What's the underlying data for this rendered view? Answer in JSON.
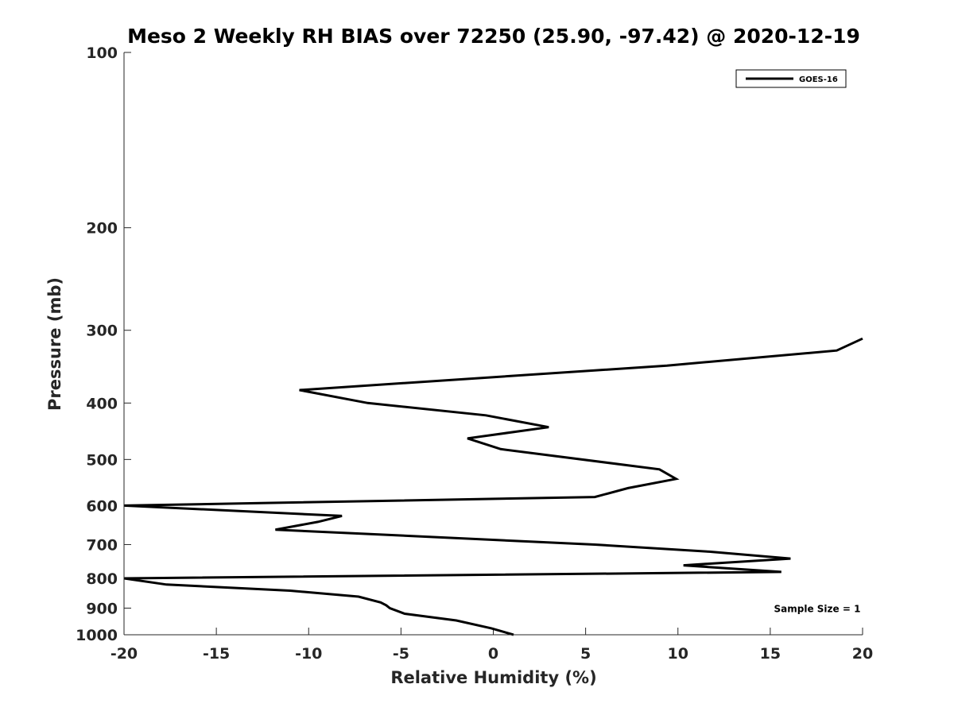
{
  "chart_data": {
    "type": "line",
    "title": "Meso 2 Weekly RH BIAS over 72250 (25.90, -97.42) @ 2020-12-19",
    "xlabel": "Relative Humidity (%)",
    "ylabel": "Pressure (mb)",
    "xlim": [
      -20,
      20
    ],
    "ylim": [
      100,
      1000
    ],
    "y_scale": "log",
    "y_reversed": true,
    "grid": false,
    "x_ticks": [
      -20,
      -15,
      -10,
      -5,
      0,
      5,
      10,
      15,
      20
    ],
    "x_tick_labels": [
      "-20",
      "-15",
      "-10",
      "-5",
      "0",
      "5",
      "10",
      "15",
      "20"
    ],
    "y_ticks": [
      100,
      200,
      300,
      400,
      500,
      600,
      700,
      800,
      900,
      1000
    ],
    "y_tick_labels": [
      "100",
      "200",
      "300",
      "400",
      "500",
      "600",
      "700",
      "800",
      "900",
      "1000"
    ],
    "legend_position": "top-right",
    "series": [
      {
        "name": "GOES-16",
        "color": "#000000",
        "x": [
          20.0,
          18.6,
          9.4,
          -10.5,
          -6.8,
          -0.4,
          3.0,
          -1.4,
          0.4,
          9.0,
          9.9,
          7.3,
          5.5,
          -20.0,
          -8.2,
          -9.5,
          -11.8,
          5.5,
          11.7,
          16.1,
          10.3,
          15.6,
          -20.0,
          -17.7,
          -11.0,
          -7.3,
          -6.1,
          -5.8,
          -5.6,
          -4.8,
          -2.0,
          -0.1,
          1.1
        ],
        "y": [
          310,
          325,
          345,
          380,
          400,
          420,
          440,
          460,
          480,
          520,
          540,
          560,
          580,
          600,
          625,
          640,
          660,
          700,
          720,
          740,
          760,
          780,
          800,
          820,
          840,
          860,
          880,
          890,
          900,
          920,
          945,
          975,
          1000
        ]
      }
    ],
    "annotations": [
      {
        "text": "Sample Size = 1",
        "x_data": 15.2,
        "y_data": 900
      }
    ]
  }
}
